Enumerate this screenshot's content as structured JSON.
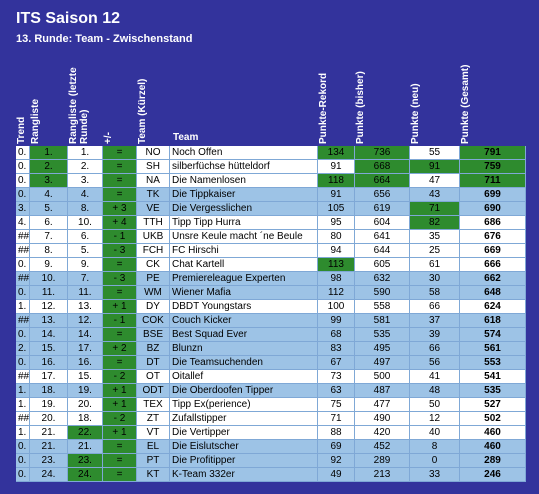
{
  "title": "ITS Saison 12",
  "subtitle": "13. Runde: Team - Zwischenstand",
  "table": {
    "columns": [
      "Trend",
      "Rangliste",
      "Rangliste (letzte Runde)",
      "+/-",
      "Team (Kürzel)",
      "Team",
      "Punkte-Rekord",
      "Punkte (bisher)",
      "Punkte (neu)",
      "Punkte (Gesamt)"
    ],
    "rows": [
      [
        "0.",
        "1.",
        "1.",
        "=",
        "NO",
        "Noch Offen",
        134,
        736,
        55,
        791
      ],
      [
        "0.",
        "2.",
        "2.",
        "=",
        "SH",
        "silberfüchse hütteldorf",
        91,
        668,
        91,
        759
      ],
      [
        "0.",
        "3.",
        "3.",
        "=",
        "NA",
        "Die Namenlosen",
        118,
        664,
        47,
        711
      ],
      [
        "0.",
        "4.",
        "4.",
        "=",
        "TK",
        "Die Tippkaiser",
        91,
        656,
        43,
        699
      ],
      [
        "3.",
        "5.",
        "8.",
        "+ 3",
        "VE",
        "Die Vergesslichen",
        105,
        619,
        71,
        690
      ],
      [
        "4.",
        "6.",
        "10.",
        "+ 4",
        "TTH",
        "Tipp Tipp Hurra",
        95,
        604,
        82,
        686
      ],
      [
        "###",
        "7.",
        "6.",
        "- 1",
        "UKB",
        "Unsre Keule macht ´ne Beule",
        80,
        641,
        35,
        676
      ],
      [
        "###",
        "8.",
        "5.",
        "- 3",
        "FCH",
        "FC Hirschi",
        94,
        644,
        25,
        669
      ],
      [
        "0.",
        "9.",
        "9.",
        "=",
        "CK",
        "Chat Kartell",
        113,
        605,
        61,
        666
      ],
      [
        "###",
        "10.",
        "7.",
        "- 3",
        "PE",
        "Premiereleague Experten",
        98,
        632,
        30,
        662
      ],
      [
        "0.",
        "11.",
        "11.",
        "=",
        "WM",
        "Wiener Mafia",
        112,
        590,
        58,
        648
      ],
      [
        "1.",
        "12.",
        "13.",
        "+ 1",
        "DY",
        "DBDT Youngstars",
        100,
        558,
        66,
        624
      ],
      [
        "###",
        "13.",
        "12.",
        "- 1",
        "COK",
        "Couch Kicker",
        99,
        581,
        37,
        618
      ],
      [
        "0.",
        "14.",
        "14.",
        "=",
        "BSE",
        "Best Squad Ever",
        68,
        535,
        39,
        574
      ],
      [
        "2.",
        "15.",
        "17.",
        "+ 2",
        "BZ",
        "Blunzn",
        83,
        495,
        66,
        561
      ],
      [
        "0.",
        "16.",
        "16.",
        "=",
        "DT",
        "Die Teamsuchenden",
        67,
        497,
        56,
        553
      ],
      [
        "###",
        "17.",
        "15.",
        "- 2",
        "OT",
        "Oitallef",
        73,
        500,
        41,
        541
      ],
      [
        "1.",
        "18.",
        "19.",
        "+ 1",
        "ODT",
        "Die Oberdoofen Tipper",
        63,
        487,
        48,
        535
      ],
      [
        "1.",
        "19.",
        "20.",
        "+ 1",
        "TEX",
        "Tipp Ex(perience)",
        75,
        477,
        50,
        527
      ],
      [
        "###",
        "20.",
        "18.",
        "- 2",
        "ZT",
        "Zufallstipper",
        71,
        490,
        12,
        502
      ],
      [
        "1.",
        "21.",
        "22.",
        "+ 1",
        "VT",
        "Die Vertipper",
        88,
        420,
        40,
        460
      ],
      [
        "0.",
        "21.",
        "21.",
        "=",
        "EL",
        "Die Eislutscher",
        69,
        452,
        8,
        460
      ],
      [
        "0.",
        "23.",
        "23.",
        "=",
        "PT",
        "Die Profitipper",
        92,
        289,
        0,
        289
      ],
      [
        "0.",
        "24.",
        "24.",
        "=",
        "KT",
        "K-Team 332er",
        49,
        213,
        33,
        246
      ]
    ]
  }
}
